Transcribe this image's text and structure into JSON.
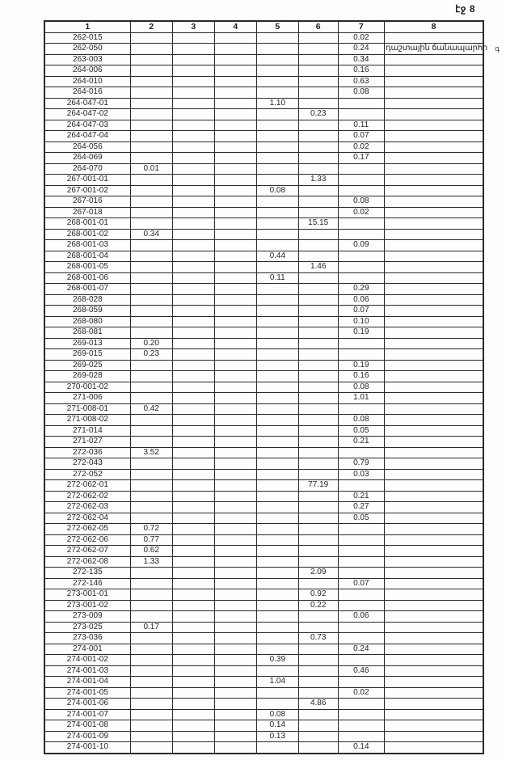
{
  "page": {
    "page_label": "էջ 8"
  },
  "margin_note": "գ",
  "table": {
    "headers": [
      "1",
      "2",
      "3",
      "4",
      "5",
      "6",
      "7",
      "8"
    ],
    "rows": [
      {
        "cells": [
          "262-015",
          "",
          "",
          "",
          "",
          "",
          "0.02",
          ""
        ]
      },
      {
        "cells": [
          "262-050",
          "",
          "",
          "",
          "",
          "",
          "0.24",
          "դաշտային ճանապարհի"
        ]
      },
      {
        "cells": [
          "263-003",
          "",
          "",
          "",
          "",
          "",
          "0.34",
          ""
        ]
      },
      {
        "cells": [
          "264-006",
          "",
          "",
          "",
          "",
          "",
          "0.16",
          ""
        ]
      },
      {
        "cells": [
          "264-010",
          "",
          "",
          "",
          "",
          "",
          "0.63",
          ""
        ]
      },
      {
        "cells": [
          "264-016",
          "",
          "",
          "",
          "",
          "",
          "0.08",
          ""
        ]
      },
      {
        "cells": [
          "264-047-01",
          "",
          "",
          "",
          "1.10",
          "",
          "",
          ""
        ]
      },
      {
        "cells": [
          "264-047-02",
          "",
          "",
          "",
          "",
          "0.23",
          "",
          ""
        ]
      },
      {
        "cells": [
          "264-047-03",
          "",
          "",
          "",
          "",
          "",
          "0.11",
          ""
        ]
      },
      {
        "cells": [
          "264-047-04",
          "",
          "",
          "",
          "",
          "",
          "0.07",
          ""
        ]
      },
      {
        "cells": [
          "264-056",
          "",
          "",
          "",
          "",
          "",
          "0.02",
          ""
        ]
      },
      {
        "cells": [
          "264-069",
          "",
          "",
          "",
          "",
          "",
          "0.17",
          ""
        ]
      },
      {
        "cells": [
          "264-070",
          "0.01",
          "",
          "",
          "",
          "",
          "",
          ""
        ]
      },
      {
        "cells": [
          "267-001-01",
          "",
          "",
          "",
          "",
          "1.33",
          "",
          ""
        ]
      },
      {
        "cells": [
          "267-001-02",
          "",
          "",
          "",
          "0.08",
          "",
          "",
          ""
        ]
      },
      {
        "cells": [
          "267-016",
          "",
          "",
          "",
          "",
          "",
          "0.08",
          ""
        ]
      },
      {
        "cells": [
          "267-018",
          "",
          "",
          "",
          "",
          "",
          "0.02",
          ""
        ]
      },
      {
        "cells": [
          "268-001-01",
          "",
          "",
          "",
          "",
          "15.15",
          "",
          ""
        ]
      },
      {
        "cells": [
          "268-001-02",
          "0.34",
          "",
          "",
          "",
          "",
          "",
          ""
        ]
      },
      {
        "cells": [
          "268-001-03",
          "",
          "",
          "",
          "",
          "",
          "0.09",
          ""
        ]
      },
      {
        "cells": [
          "268-001-04",
          "",
          "",
          "",
          "0.44",
          "",
          "",
          ""
        ]
      },
      {
        "cells": [
          "268-001-05",
          "",
          "",
          "",
          "",
          "1.46",
          "",
          ""
        ]
      },
      {
        "cells": [
          "268-001-06",
          "",
          "",
          "",
          "0.11",
          "",
          "",
          ""
        ]
      },
      {
        "cells": [
          "268-001-07",
          "",
          "",
          "",
          "",
          "",
          "0.29",
          ""
        ]
      },
      {
        "cells": [
          "268-028",
          "",
          "",
          "",
          "",
          "",
          "0.06",
          ""
        ]
      },
      {
        "cells": [
          "268-059",
          "",
          "",
          "",
          "",
          "",
          "0.07",
          ""
        ]
      },
      {
        "cells": [
          "268-080",
          "",
          "",
          "",
          "",
          "",
          "0.10",
          ""
        ]
      },
      {
        "cells": [
          "268-081",
          "",
          "",
          "",
          "",
          "",
          "0.19",
          ""
        ]
      },
      {
        "cells": [
          "269-013",
          "0.20",
          "",
          "",
          "",
          "",
          "",
          ""
        ]
      },
      {
        "cells": [
          "269-015",
          "0.23",
          "",
          "",
          "",
          "",
          "",
          ""
        ]
      },
      {
        "cells": [
          "269-025",
          "",
          "",
          "",
          "",
          "",
          "0.19",
          ""
        ]
      },
      {
        "cells": [
          "269-028",
          "",
          "",
          "",
          "",
          "",
          "0.16",
          ""
        ]
      },
      {
        "cells": [
          "270-001-02",
          "",
          "",
          "",
          "",
          "",
          "0.08",
          ""
        ]
      },
      {
        "cells": [
          "271-006",
          "",
          "",
          "",
          "",
          "",
          "1.01",
          ""
        ]
      },
      {
        "cells": [
          "271-008-01",
          "0.42",
          "",
          "",
          "",
          "",
          "",
          ""
        ]
      },
      {
        "cells": [
          "271-008-02",
          "",
          "",
          "",
          "",
          "",
          "0.08",
          ""
        ]
      },
      {
        "cells": [
          "271-014",
          "",
          "",
          "",
          "",
          "",
          "0.05",
          ""
        ]
      },
      {
        "cells": [
          "271-027",
          "",
          "",
          "",
          "",
          "",
          "0.21",
          ""
        ]
      },
      {
        "cells": [
          "272-036",
          "3.52",
          "",
          "",
          "",
          "",
          "",
          ""
        ]
      },
      {
        "cells": [
          "272-043",
          "",
          "",
          "",
          "",
          "",
          "0.79",
          ""
        ]
      },
      {
        "cells": [
          "272-052",
          "",
          "",
          "",
          "",
          "",
          "0.03",
          ""
        ]
      },
      {
        "cells": [
          "272-062-01",
          "",
          "",
          "",
          "",
          "77.19",
          "",
          ""
        ]
      },
      {
        "cells": [
          "272-062-02",
          "",
          "",
          "",
          "",
          "",
          "0.21",
          ""
        ]
      },
      {
        "cells": [
          "272-062-03",
          "",
          "",
          "",
          "",
          "",
          "0.27",
          ""
        ]
      },
      {
        "cells": [
          "272-062-04",
          "",
          "",
          "",
          "",
          "",
          "0.05",
          ""
        ]
      },
      {
        "cells": [
          "272-062-05",
          "0.72",
          "",
          "",
          "",
          "",
          "",
          ""
        ]
      },
      {
        "cells": [
          "272-062-06",
          "0.77",
          "",
          "",
          "",
          "",
          "",
          ""
        ]
      },
      {
        "cells": [
          "272-062-07",
          "0.62",
          "",
          "",
          "",
          "",
          "",
          ""
        ]
      },
      {
        "cells": [
          "272-062-08",
          "1.33",
          "",
          "",
          "",
          "",
          "",
          ""
        ]
      },
      {
        "cells": [
          "272-135",
          "",
          "",
          "",
          "",
          "2.09",
          "",
          ""
        ]
      },
      {
        "cells": [
          "272-146",
          "",
          "",
          "",
          "",
          "",
          "0.07",
          ""
        ]
      },
      {
        "cells": [
          "273-001-01",
          "",
          "",
          "",
          "",
          "0.92",
          "",
          ""
        ]
      },
      {
        "cells": [
          "273-001-02",
          "",
          "",
          "",
          "",
          "0.22",
          "",
          ""
        ]
      },
      {
        "cells": [
          "273-009",
          "",
          "",
          "",
          "",
          "",
          "0.06",
          ""
        ]
      },
      {
        "cells": [
          "273-025",
          "0.17",
          "",
          "",
          "",
          "",
          "",
          ""
        ]
      },
      {
        "cells": [
          "273-036",
          "",
          "",
          "",
          "",
          "0.73",
          "",
          ""
        ]
      },
      {
        "cells": [
          "274-001",
          "",
          "",
          "",
          "",
          "",
          "0.24",
          ""
        ]
      },
      {
        "cells": [
          "274-001-02",
          "",
          "",
          "",
          "0.39",
          "",
          "",
          ""
        ]
      },
      {
        "cells": [
          "274-001-03",
          "",
          "",
          "",
          "",
          "",
          "0.46",
          ""
        ]
      },
      {
        "cells": [
          "274-001-04",
          "",
          "",
          "",
          "1.04",
          "",
          "",
          ""
        ]
      },
      {
        "cells": [
          "274-001-05",
          "",
          "",
          "",
          "",
          "",
          "0.02",
          ""
        ]
      },
      {
        "cells": [
          "274-001-06",
          "",
          "",
          "",
          "",
          "4.86",
          "",
          ""
        ]
      },
      {
        "cells": [
          "274-001-07",
          "",
          "",
          "",
          "0.08",
          "",
          "",
          ""
        ]
      },
      {
        "cells": [
          "274-001-08",
          "",
          "",
          "",
          "0.14",
          "",
          "",
          ""
        ]
      },
      {
        "cells": [
          "274-001-09",
          "",
          "",
          "",
          "0.13",
          "",
          "",
          ""
        ]
      },
      {
        "cells": [
          "274-001-10",
          "",
          "",
          "",
          "",
          "",
          "0.14",
          ""
        ]
      }
    ]
  }
}
